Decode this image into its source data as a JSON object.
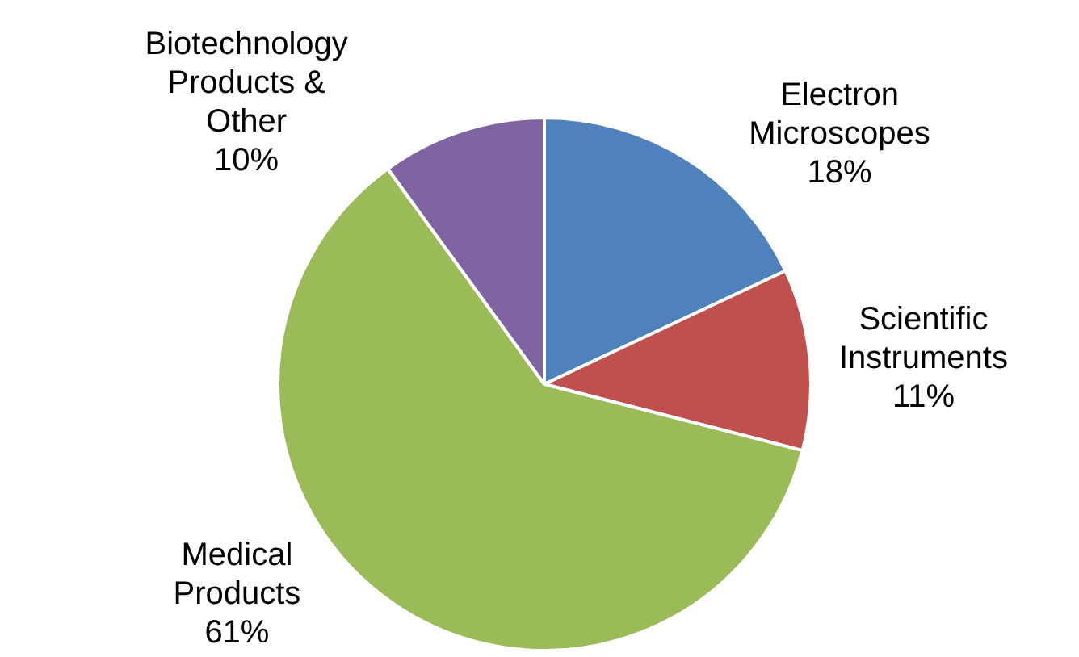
{
  "chart_data": {
    "type": "pie",
    "categories": [
      "Electron Microscopes",
      "Scientific Instruments",
      "Medical Products",
      "Biotechnology Products & Other"
    ],
    "values": [
      18,
      11,
      61,
      10
    ],
    "value_labels": [
      "18%",
      "11%",
      "61%",
      "10%"
    ],
    "colors": [
      "#4f81bd",
      "#c0504d",
      "#9bbb59",
      "#8064a2"
    ]
  }
}
